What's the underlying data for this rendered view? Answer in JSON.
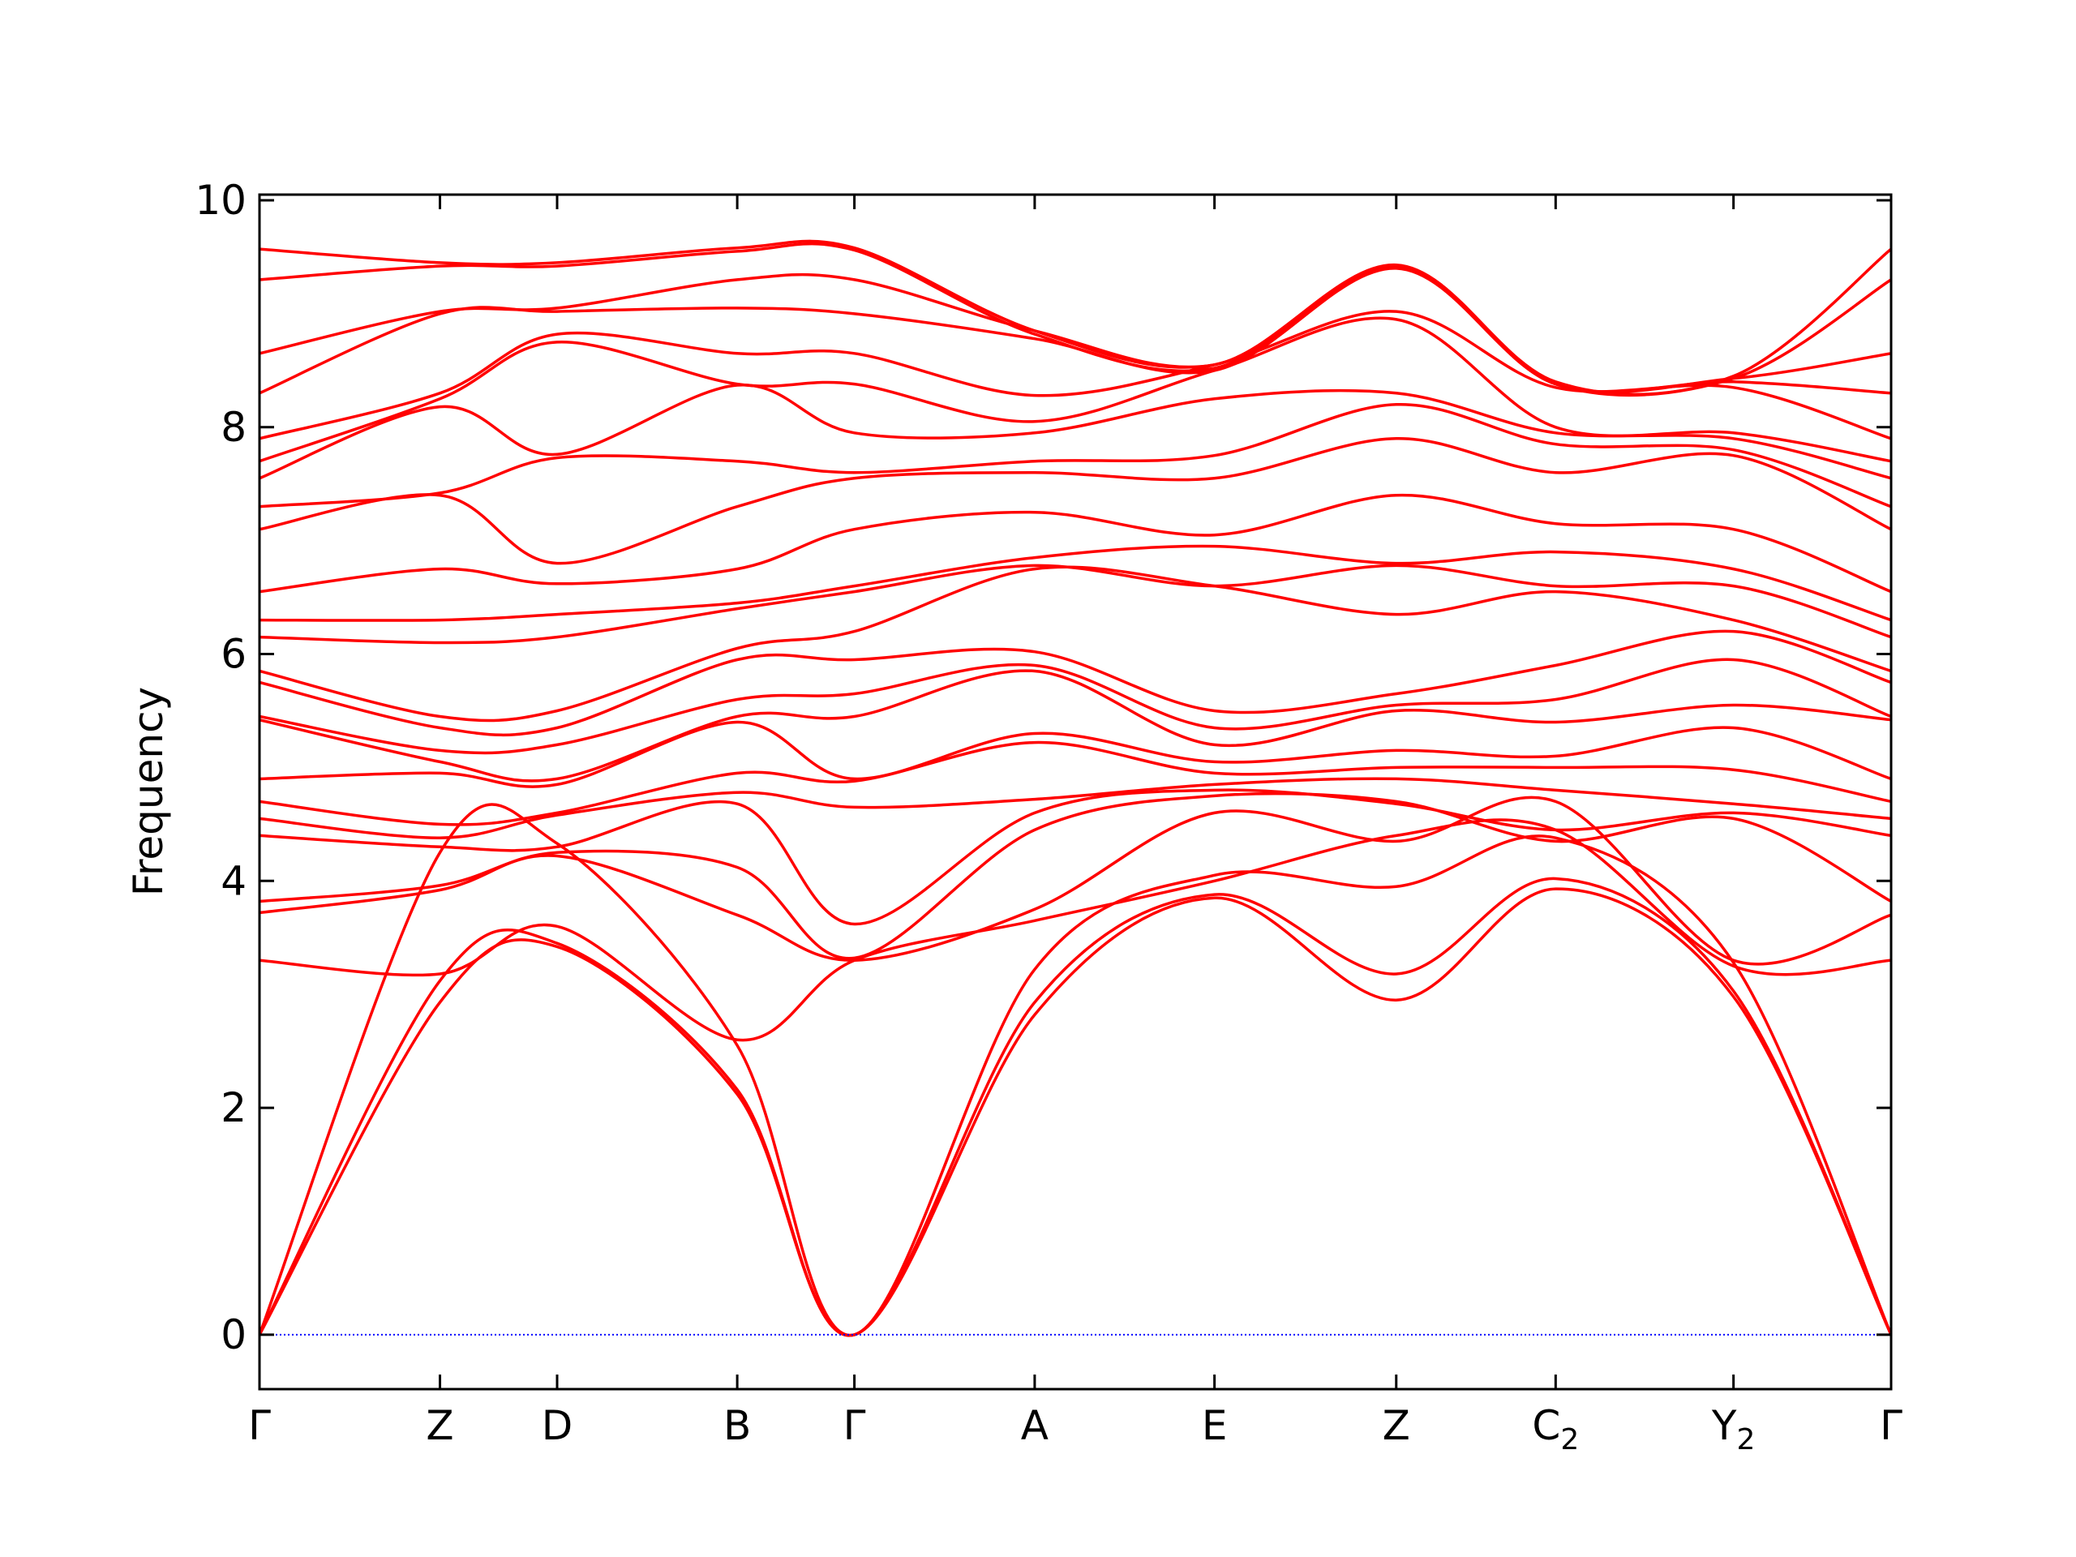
{
  "chart_data": {
    "type": "line",
    "title": "",
    "xlabel": "",
    "ylabel": "Frequency",
    "ylim": [
      -0.48,
      10.05
    ],
    "grid": false,
    "legend": "none",
    "x_ticks": [
      {
        "label": "Γ",
        "sub": "",
        "x": 0.0
      },
      {
        "label": "Z",
        "sub": "",
        "x": 0.1106
      },
      {
        "label": "D",
        "sub": "",
        "x": 0.1824
      },
      {
        "label": "B",
        "sub": "",
        "x": 0.2928
      },
      {
        "label": "Γ",
        "sub": "",
        "x": 0.3646
      },
      {
        "label": "A",
        "sub": "",
        "x": 0.4751
      },
      {
        "label": "E",
        "sub": "",
        "x": 0.5853
      },
      {
        "label": "Z",
        "sub": "",
        "x": 0.6967
      },
      {
        "label": "C",
        "sub": "2",
        "x": 0.7944
      },
      {
        "label": "Y",
        "sub": "2",
        "x": 0.9034
      },
      {
        "label": "Γ",
        "sub": "",
        "x": 1.0
      }
    ],
    "y_ticks": [
      0,
      2,
      4,
      6,
      8,
      10
    ],
    "zero_line": {
      "y": 0,
      "color": "#0000ff"
    },
    "series_color": "#ff0000",
    "series": [
      {
        "x": [
          0,
          0.1106,
          0.1824,
          0.2928,
          0.3646,
          0.4751,
          0.5853,
          0.6967,
          0.7944,
          0.9034,
          1.0
        ],
        "y": [
          0,
          2.93,
          3.42,
          2.12,
          0,
          2.82,
          3.85,
          2.95,
          3.93,
          2.98,
          0
        ]
      },
      {
        "x": [
          0,
          0.1106,
          0.1824,
          0.2928,
          0.3646,
          0.4751,
          0.5853,
          0.6967,
          0.7944,
          0.9034,
          1.0
        ],
        "y": [
          0,
          3.12,
          3.45,
          2.16,
          0,
          2.93,
          3.88,
          3.18,
          4.02,
          3.03,
          0
        ]
      },
      {
        "x": [
          0,
          0.1106,
          0.1824,
          0.2928,
          0.3646,
          0.4751,
          0.5853,
          0.6967,
          0.7944,
          0.9034,
          1.0
        ],
        "y": [
          0,
          4.25,
          4.33,
          2.55,
          0,
          3.22,
          4.05,
          3.95,
          4.38,
          3.28,
          0
        ]
      },
      {
        "x": [
          0,
          0.1106,
          0.1824,
          0.2928,
          0.3646,
          0.4751,
          0.5853,
          0.6967,
          0.7944,
          0.9034,
          1.0
        ],
        "y": [
          3.3,
          3.18,
          3.6,
          2.6,
          3.3,
          3.65,
          4.0,
          4.4,
          4.45,
          3.25,
          3.3
        ]
      },
      {
        "x": [
          0,
          0.1106,
          0.1824,
          0.2928,
          0.3646,
          0.4751,
          0.5853,
          0.6967,
          0.7944,
          0.9034,
          1.0
        ],
        "y": [
          3.72,
          3.92,
          4.22,
          3.7,
          3.3,
          3.75,
          4.6,
          4.35,
          4.7,
          3.3,
          3.7
        ]
      },
      {
        "x": [
          0,
          0.1106,
          0.1824,
          0.2928,
          0.3646,
          0.4751,
          0.5853,
          0.6967,
          0.7944,
          0.9034,
          1.0
        ],
        "y": [
          3.82,
          3.96,
          4.25,
          4.12,
          3.32,
          4.45,
          4.75,
          4.7,
          4.35,
          4.55,
          3.82
        ]
      },
      {
        "x": [
          0,
          0.1106,
          0.1824,
          0.2928,
          0.3646,
          0.4751,
          0.5853,
          0.6967,
          0.7944,
          0.9034,
          1.0
        ],
        "y": [
          4.4,
          4.3,
          4.3,
          4.68,
          3.62,
          4.6,
          4.8,
          4.68,
          4.45,
          4.6,
          4.4
        ]
      },
      {
        "x": [
          0,
          0.1106,
          0.1824,
          0.2928,
          0.3646,
          0.4751,
          0.5853,
          0.6967,
          0.7944,
          0.9034,
          1.0
        ],
        "y": [
          4.55,
          4.38,
          4.58,
          4.78,
          4.65,
          4.72,
          4.85,
          4.9,
          4.8,
          4.68,
          4.55
        ]
      },
      {
        "x": [
          0,
          0.1106,
          0.1824,
          0.2928,
          0.3646,
          0.4751,
          0.5853,
          0.6967,
          0.7944,
          0.9034,
          1.0
        ],
        "y": [
          4.7,
          4.5,
          4.6,
          4.95,
          4.88,
          5.22,
          4.95,
          5.0,
          5.0,
          4.98,
          4.7
        ]
      },
      {
        "x": [
          0,
          0.1106,
          0.1824,
          0.2928,
          0.3646,
          0.4751,
          0.5853,
          0.6967,
          0.7944,
          0.9034,
          1.0
        ],
        "y": [
          4.9,
          4.95,
          4.85,
          5.4,
          4.9,
          5.3,
          5.05,
          5.15,
          5.1,
          5.35,
          4.9
        ]
      },
      {
        "x": [
          0,
          0.1106,
          0.1824,
          0.2928,
          0.3646,
          0.4751,
          0.5853,
          0.6967,
          0.7944,
          0.9034,
          1.0
        ],
        "y": [
          5.42,
          5.05,
          4.9,
          5.45,
          5.45,
          5.85,
          5.2,
          5.5,
          5.4,
          5.55,
          5.42
        ]
      },
      {
        "x": [
          0,
          0.1106,
          0.1824,
          0.2928,
          0.3646,
          0.4751,
          0.5853,
          0.6967,
          0.7944,
          0.9034,
          1.0
        ],
        "y": [
          5.45,
          5.15,
          5.2,
          5.6,
          5.65,
          5.9,
          5.35,
          5.55,
          5.6,
          5.95,
          5.45
        ]
      },
      {
        "x": [
          0,
          0.1106,
          0.1824,
          0.2928,
          0.3646,
          0.4751,
          0.5853,
          0.6967,
          0.7944,
          0.9034,
          1.0
        ],
        "y": [
          5.75,
          5.35,
          5.35,
          5.95,
          5.95,
          6.02,
          5.5,
          5.65,
          5.9,
          6.2,
          5.75
        ]
      },
      {
        "x": [
          0,
          0.1106,
          0.1824,
          0.2928,
          0.3646,
          0.4751,
          0.5853,
          0.6967,
          0.7944,
          0.9034,
          1.0
        ],
        "y": [
          5.85,
          5.45,
          5.5,
          6.05,
          6.2,
          6.75,
          6.6,
          6.35,
          6.55,
          6.3,
          5.85
        ]
      },
      {
        "x": [
          0,
          0.1106,
          0.1824,
          0.2928,
          0.3646,
          0.4751,
          0.5853,
          0.6967,
          0.7944,
          0.9034,
          1.0
        ],
        "y": [
          6.15,
          6.1,
          6.15,
          6.4,
          6.55,
          6.78,
          6.6,
          6.78,
          6.6,
          6.6,
          6.15
        ]
      },
      {
        "x": [
          0,
          0.1106,
          0.1824,
          0.2928,
          0.3646,
          0.4751,
          0.5853,
          0.6967,
          0.7944,
          0.9034,
          1.0
        ],
        "y": [
          6.3,
          6.3,
          6.35,
          6.45,
          6.6,
          6.85,
          6.95,
          6.8,
          6.9,
          6.75,
          6.3
        ]
      },
      {
        "x": [
          0,
          0.1106,
          0.1824,
          0.2928,
          0.3646,
          0.4751,
          0.5853,
          0.6967,
          0.7944,
          0.9034,
          1.0
        ],
        "y": [
          6.55,
          6.75,
          6.62,
          6.75,
          7.1,
          7.25,
          7.05,
          7.4,
          7.15,
          7.1,
          6.55
        ]
      },
      {
        "x": [
          0,
          0.1106,
          0.1824,
          0.2928,
          0.3646,
          0.4751,
          0.5853,
          0.6967,
          0.7944,
          0.9034,
          1.0
        ],
        "y": [
          7.1,
          7.4,
          6.8,
          7.3,
          7.55,
          7.6,
          7.55,
          7.9,
          7.6,
          7.75,
          7.1
        ]
      },
      {
        "x": [
          0,
          0.1106,
          0.1824,
          0.2928,
          0.3646,
          0.4751,
          0.5853,
          0.6967,
          0.7944,
          0.9034,
          1.0
        ],
        "y": [
          7.3,
          7.42,
          7.73,
          7.7,
          7.6,
          7.7,
          7.75,
          8.2,
          7.85,
          7.8,
          7.3
        ]
      },
      {
        "x": [
          0,
          0.1106,
          0.1824,
          0.2928,
          0.3646,
          0.4751,
          0.5853,
          0.6967,
          0.7944,
          0.9034,
          1.0
        ],
        "y": [
          7.55,
          8.18,
          7.76,
          8.37,
          7.95,
          7.95,
          8.25,
          8.3,
          7.95,
          7.9,
          7.55
        ]
      },
      {
        "x": [
          0,
          0.1106,
          0.1824,
          0.2928,
          0.3646,
          0.4751,
          0.5853,
          0.6967,
          0.7944,
          0.9034,
          1.0
        ],
        "y": [
          7.7,
          8.25,
          8.75,
          8.38,
          8.38,
          8.05,
          8.5,
          8.95,
          8.0,
          7.95,
          7.7
        ]
      },
      {
        "x": [
          0,
          0.1106,
          0.1824,
          0.2928,
          0.3646,
          0.4751,
          0.5853,
          0.6967,
          0.7944,
          0.9034,
          1.0
        ],
        "y": [
          7.9,
          8.3,
          8.82,
          8.65,
          8.65,
          8.28,
          8.55,
          9.02,
          8.35,
          8.35,
          7.9
        ]
      },
      {
        "x": [
          0,
          0.1106,
          0.1824,
          0.2928,
          0.3646,
          0.4751,
          0.5853,
          0.6967,
          0.7944,
          0.9034,
          1.0
        ],
        "y": [
          8.3,
          9.0,
          9.02,
          9.05,
          9.0,
          8.78,
          8.5,
          9.4,
          8.38,
          8.4,
          8.3
        ]
      },
      {
        "x": [
          0,
          0.1106,
          0.1824,
          0.2928,
          0.3646,
          0.4751,
          0.5853,
          0.6967,
          0.7944,
          0.9034,
          1.0
        ],
        "y": [
          8.65,
          9.02,
          9.05,
          9.3,
          9.3,
          8.85,
          8.55,
          9.42,
          8.38,
          8.43,
          8.65
        ]
      },
      {
        "x": [
          0,
          0.1106,
          0.1824,
          0.2928,
          0.3646,
          0.4751,
          0.5853,
          0.6967,
          0.7944,
          0.9034,
          1.0
        ],
        "y": [
          9.3,
          9.42,
          9.42,
          9.55,
          9.56,
          8.82,
          8.52,
          9.42,
          8.38,
          8.43,
          9.3
        ]
      },
      {
        "x": [
          0,
          0.1106,
          0.1824,
          0.2928,
          0.3646,
          0.4751,
          0.5853,
          0.6967,
          0.7944,
          0.9034,
          1.0
        ],
        "y": [
          9.57,
          9.45,
          9.45,
          9.58,
          9.58,
          8.85,
          8.55,
          9.43,
          8.4,
          8.45,
          9.57
        ]
      }
    ]
  }
}
